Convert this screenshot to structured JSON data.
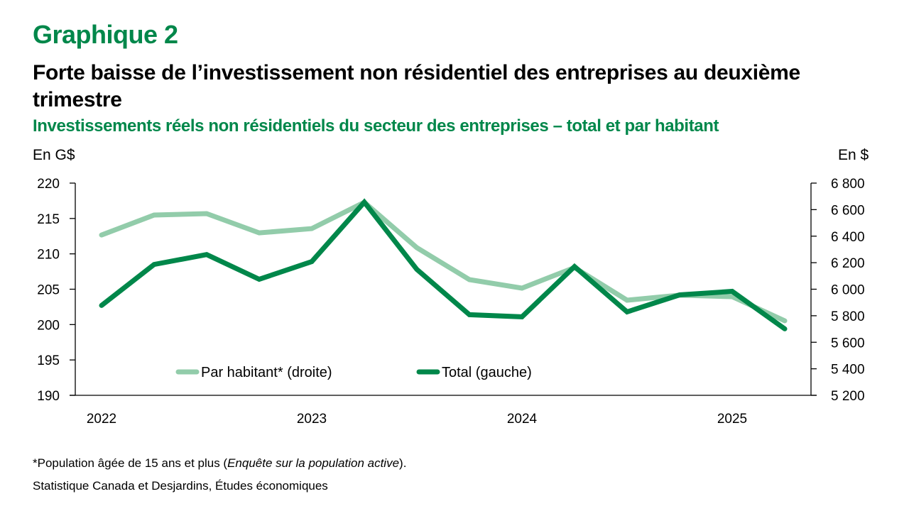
{
  "header": {
    "chart_number": "Graphique 2",
    "title": "Forte baisse de l’investissement non résidentiel des entreprises au deuxième trimestre",
    "subtitle": "Investissements réels non résidentiels du secteur des entreprises – total et par habitant"
  },
  "footer": {
    "footnote_prefix": "*Population âgée de 15 ans et plus (",
    "footnote_italic": "Enquête sur la population active",
    "footnote_suffix": ").",
    "source": "Statistique Canada et Desjardins, Études économiques"
  },
  "colors": {
    "brand_green": "#00874a",
    "total_line": "#00874a",
    "per_capita_line": "#92ccaa"
  },
  "chart_data": {
    "type": "line",
    "title": "Forte baisse de l’investissement non résidentiel des entreprises au deuxième trimestre",
    "subtitle": "Investissements réels non résidentiels du secteur des entreprises – total et par habitant",
    "x": [
      "2022T1",
      "2022T2",
      "2022T3",
      "2022T4",
      "2023T1",
      "2023T2",
      "2023T3",
      "2023T4",
      "2024T1",
      "2024T2",
      "2024T3",
      "2024T4",
      "2025T1",
      "2025T2"
    ],
    "x_tick_labels": [
      {
        "index": 0,
        "label": "2022"
      },
      {
        "index": 4,
        "label": "2023"
      },
      {
        "index": 8,
        "label": "2024"
      },
      {
        "index": 12,
        "label": "2025"
      }
    ],
    "ylabel_left": "En G$",
    "ylabel_right": "En $",
    "ylim_left": [
      190,
      220
    ],
    "yticks_left": [
      190,
      195,
      200,
      205,
      210,
      215,
      220
    ],
    "yticks_left_labels": [
      "190",
      "195",
      "200",
      "205",
      "210",
      "215",
      "220"
    ],
    "ylim_right": [
      5200,
      6800
    ],
    "yticks_right": [
      5200,
      5400,
      5600,
      5800,
      6000,
      6200,
      6400,
      6600,
      6800
    ],
    "yticks_right_labels": [
      "5 200",
      "5 400",
      "5 600",
      "5 800",
      "6 000",
      "6 200",
      "6 400",
      "6 600",
      "6 800"
    ],
    "grid": false,
    "legend_placement": "bottom-center inside plot",
    "series": [
      {
        "name": "Par habitant* (droite)",
        "axis": "right",
        "color": "#92ccaa",
        "values": [
          6409,
          6559,
          6570,
          6425,
          6457,
          6655,
          6313,
          6072,
          6008,
          6163,
          5917,
          5955,
          5944,
          5762
        ]
      },
      {
        "name": "Total (gauche)",
        "axis": "left",
        "color": "#00874a",
        "values": [
          202.7,
          208.5,
          209.9,
          206.4,
          208.9,
          217.3,
          207.8,
          201.4,
          201.1,
          208.2,
          201.8,
          204.2,
          204.7,
          199.4
        ]
      }
    ]
  }
}
